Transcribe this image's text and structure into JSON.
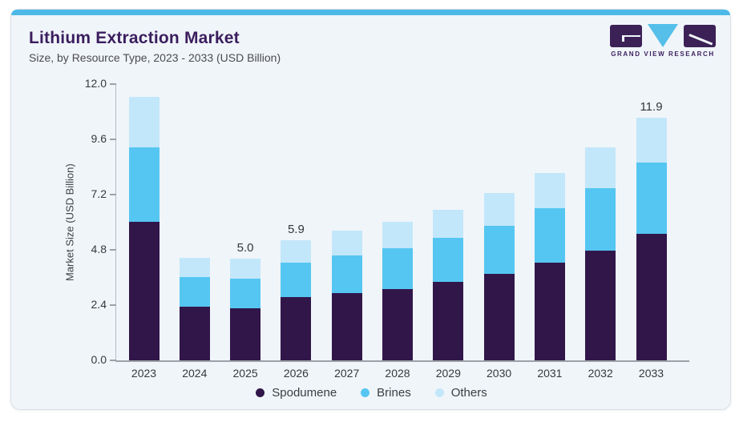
{
  "header": {
    "title": "Lithium Extraction Market",
    "subtitle": "Size, by Resource Type, 2023 - 2033 (USD Billion)",
    "logo_text": "GRAND VIEW RESEARCH"
  },
  "theme": {
    "accent_bar": "#4db9e8",
    "card_background": "#f0f5f9",
    "title_color": "#3b1e5e",
    "logo_purple": "#3c2157",
    "logo_blue": "#55bfe9"
  },
  "chart_data": {
    "type": "bar",
    "stacked": true,
    "title": "Lithium Extraction Market",
    "subtitle": "Size, by Resource Type, 2023 - 2033 (USD Billion)",
    "xlabel": "",
    "ylabel": "Market Size (USD Billion)",
    "ylim": [
      0,
      12
    ],
    "yticks": [
      {
        "value": 0.0,
        "label": "0.0"
      },
      {
        "value": 2.4,
        "label": "2.4"
      },
      {
        "value": 4.8,
        "label": "4.8"
      },
      {
        "value": 7.2,
        "label": "7.2"
      },
      {
        "value": 9.6,
        "label": "9.6"
      },
      {
        "value": 12.0,
        "label": "12.0"
      }
    ],
    "categories": [
      "2023",
      "2024",
      "2025",
      "2026",
      "2027",
      "2028",
      "2029",
      "2030",
      "2031",
      "2032",
      "2033"
    ],
    "series": [
      {
        "name": "Spodumene",
        "color": "#31164a",
        "values": [
          6.8,
          2.65,
          2.55,
          3.1,
          3.3,
          3.5,
          3.85,
          4.25,
          4.8,
          5.4,
          6.2
        ]
      },
      {
        "name": "Brines",
        "color": "#55c6f1",
        "values": [
          3.65,
          1.45,
          1.45,
          1.7,
          1.85,
          2.0,
          2.15,
          2.35,
          2.65,
          3.05,
          3.5
        ]
      },
      {
        "name": "Others",
        "color": "#c3e7fa",
        "values": [
          2.5,
          0.95,
          1.0,
          1.1,
          1.2,
          1.3,
          1.4,
          1.6,
          1.75,
          2.0,
          2.2
        ]
      }
    ],
    "data_labels": [
      {
        "category": "2025",
        "text": "5.0"
      },
      {
        "category": "2026",
        "text": "5.9"
      },
      {
        "category": "2033",
        "text": "11.9"
      }
    ],
    "legend": [
      "Spodumene",
      "Brines",
      "Others"
    ],
    "legend_position": "bottom",
    "grid": false
  }
}
